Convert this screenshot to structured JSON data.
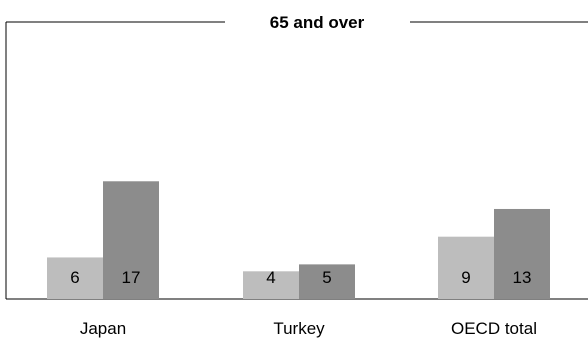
{
  "chart_data": {
    "type": "bar",
    "title": "65 and over",
    "categories": [
      "Japan",
      "Turkey",
      "OECD total"
    ],
    "series": [
      {
        "values": [
          6,
          4,
          9
        ],
        "color": "#bdbdbd"
      },
      {
        "values": [
          17,
          5,
          13
        ],
        "color": "#8c8c8c"
      }
    ],
    "ylim": [
      0,
      40
    ],
    "grid": false,
    "legend": "none",
    "frame_color": "#000000"
  }
}
